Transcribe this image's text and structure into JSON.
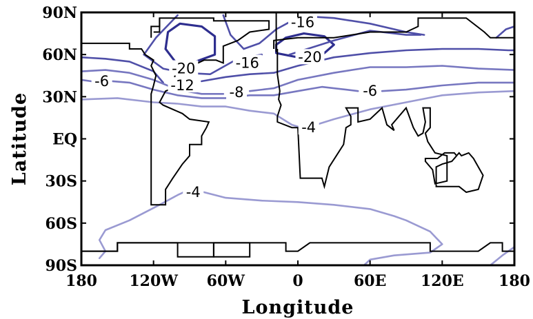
{
  "chart_data": {
    "type": "contour",
    "xlabel": "Longitude",
    "ylabel": "Latitude",
    "x_ticks": [
      "180",
      "120W",
      "60W",
      "0",
      "60E",
      "120E",
      "180"
    ],
    "x_tick_values": [
      -180,
      -120,
      -60,
      0,
      60,
      120,
      180
    ],
    "y_ticks": [
      "90N",
      "60N",
      "30N",
      "EQ",
      "30S",
      "60S",
      "90S"
    ],
    "y_tick_values": [
      90,
      60,
      30,
      0,
      -30,
      -60,
      -90
    ],
    "xlim": [
      -180,
      180
    ],
    "ylim": [
      -90,
      90
    ],
    "grid": false,
    "colors": {
      "contour_strong": "#2e2e8f",
      "contour_mid": "#4f4fa8",
      "contour_light": "#7777c0",
      "contour_faint": "#9a9ad2",
      "coastline": "#000000"
    },
    "contour_labels": [
      {
        "text": "-16",
        "lon": 4,
        "lat": 83
      },
      {
        "text": "-20",
        "lon": -95,
        "lat": 50
      },
      {
        "text": "-16",
        "lon": -42,
        "lat": 54
      },
      {
        "text": "-20",
        "lon": 10,
        "lat": 58
      },
      {
        "text": "-6",
        "lon": -163,
        "lat": 41
      },
      {
        "text": "-12",
        "lon": -96,
        "lat": 38
      },
      {
        "text": "-8",
        "lon": -51,
        "lat": 33
      },
      {
        "text": "-6",
        "lon": 60,
        "lat": 34
      },
      {
        "text": "-4",
        "lon": 9,
        "lat": 8
      },
      {
        "text": "-4",
        "lon": -87,
        "lat": -38
      }
    ],
    "contours": [
      {
        "level": -20,
        "color": "contour_strong",
        "points": [
          [
            -110,
            64
          ],
          [
            -108,
            76
          ],
          [
            -98,
            82
          ],
          [
            -80,
            80
          ],
          [
            -69,
            73
          ],
          [
            -69,
            60
          ],
          [
            -88,
            54
          ],
          [
            -102,
            55
          ],
          [
            -110,
            64
          ]
        ]
      },
      {
        "level": -20,
        "color": "contour_strong",
        "points": [
          [
            -18,
            67
          ],
          [
            -10,
            72
          ],
          [
            5,
            75
          ],
          [
            22,
            73
          ],
          [
            30,
            67
          ],
          [
            22,
            61
          ],
          [
            12,
            58
          ],
          [
            0,
            58
          ],
          [
            -18,
            61
          ],
          [
            -18,
            67
          ]
        ]
      },
      {
        "level": -16,
        "color": "contour_mid",
        "points": [
          [
            -128,
            60
          ],
          [
            -118,
            72
          ],
          [
            -100,
            88
          ]
        ]
      },
      {
        "level": -16,
        "color": "contour_mid",
        "points": [
          [
            -62,
            88
          ],
          [
            -56,
            74
          ],
          [
            -45,
            64
          ],
          [
            -32,
            68
          ],
          [
            -18,
            78
          ],
          [
            -5,
            84
          ],
          [
            10,
            87
          ],
          [
            30,
            86
          ],
          [
            60,
            82
          ],
          [
            90,
            76
          ],
          [
            105,
            74
          ]
        ]
      },
      {
        "level": -16,
        "color": "contour_mid",
        "points": [
          [
            -128,
            60
          ],
          [
            -112,
            50
          ],
          [
            -95,
            47
          ],
          [
            -73,
            46
          ],
          [
            -50,
            57
          ],
          [
            -30,
            60
          ]
        ]
      },
      {
        "level": -16,
        "color": "contour_mid",
        "points": [
          [
            -7,
            60
          ],
          [
            30,
            70
          ],
          [
            60,
            77
          ],
          [
            90,
            74
          ],
          [
            102,
            74
          ]
        ]
      },
      {
        "level": -16,
        "color": "contour_mid",
        "points": [
          [
            165,
            72
          ],
          [
            173,
            78
          ],
          [
            180,
            80
          ]
        ]
      },
      {
        "level": -12,
        "color": "contour_mid",
        "points": [
          [
            -180,
            58
          ],
          [
            -160,
            57
          ],
          [
            -140,
            55
          ],
          [
            -120,
            48
          ],
          [
            -112,
            40
          ]
        ]
      },
      {
        "level": -12,
        "color": "contour_mid",
        "points": [
          [
            -80,
            41
          ],
          [
            -60,
            44
          ],
          [
            -40,
            46
          ],
          [
            -20,
            47
          ],
          [
            0,
            52
          ],
          [
            30,
            58
          ],
          [
            60,
            61
          ],
          [
            90,
            63
          ],
          [
            120,
            64
          ],
          [
            150,
            64
          ],
          [
            175,
            63
          ],
          [
            180,
            63
          ]
        ]
      },
      {
        "level": -8,
        "color": "contour_light",
        "points": [
          [
            -180,
            48
          ],
          [
            -160,
            49
          ],
          [
            -140,
            47
          ],
          [
            -120,
            42
          ],
          [
            -100,
            35
          ],
          [
            -80,
            32
          ],
          [
            -62,
            32
          ]
        ]
      },
      {
        "level": -8,
        "color": "contour_light",
        "points": [
          [
            -40,
            34
          ],
          [
            -20,
            36
          ],
          [
            0,
            42
          ],
          [
            30,
            47
          ],
          [
            60,
            51
          ],
          [
            90,
            51
          ],
          [
            120,
            52
          ],
          [
            150,
            50
          ],
          [
            180,
            49
          ]
        ]
      },
      {
        "level": -6,
        "color": "contour_light",
        "points": [
          [
            -180,
            42
          ],
          [
            -172,
            41
          ]
        ]
      },
      {
        "level": -6,
        "color": "contour_light",
        "points": [
          [
            -154,
            41
          ],
          [
            -140,
            40
          ],
          [
            -120,
            35
          ],
          [
            -100,
            31
          ],
          [
            -80,
            29
          ],
          [
            -60,
            29
          ],
          [
            -40,
            31
          ],
          [
            -20,
            31
          ],
          [
            0,
            34
          ],
          [
            20,
            37
          ],
          [
            40,
            35
          ],
          [
            50,
            34
          ]
        ]
      },
      {
        "level": -6,
        "color": "contour_light",
        "points": [
          [
            70,
            34
          ],
          [
            90,
            35
          ],
          [
            120,
            38
          ],
          [
            150,
            40
          ],
          [
            180,
            40
          ]
        ]
      },
      {
        "level": -4,
        "color": "contour_faint",
        "points": [
          [
            -180,
            28
          ],
          [
            -150,
            29
          ],
          [
            -120,
            26
          ],
          [
            -100,
            25
          ],
          [
            -80,
            23
          ],
          [
            -60,
            23
          ],
          [
            -40,
            20
          ],
          [
            -20,
            18
          ],
          [
            -5,
            10
          ],
          [
            3,
            8
          ]
        ]
      },
      {
        "level": -4,
        "color": "contour_faint",
        "points": [
          [
            15,
            10
          ],
          [
            30,
            14
          ],
          [
            60,
            21
          ],
          [
            90,
            26
          ],
          [
            120,
            31
          ],
          [
            150,
            33
          ],
          [
            180,
            34
          ]
        ]
      },
      {
        "level": -4,
        "color": "contour_faint",
        "points": [
          [
            -165,
            -85
          ],
          [
            -160,
            -80
          ],
          [
            -165,
            -72
          ],
          [
            -160,
            -65
          ],
          [
            -140,
            -58
          ],
          [
            -115,
            -47
          ],
          [
            -100,
            -40
          ],
          [
            -95,
            -38
          ]
        ]
      },
      {
        "level": -4,
        "color": "contour_faint",
        "points": [
          [
            -78,
            -38
          ],
          [
            -60,
            -42
          ],
          [
            -30,
            -44
          ],
          [
            0,
            -45
          ],
          [
            30,
            -47
          ],
          [
            60,
            -50
          ],
          [
            80,
            -55
          ],
          [
            90,
            -58
          ],
          [
            100,
            -62
          ],
          [
            110,
            -66
          ],
          [
            120,
            -75
          ],
          [
            110,
            -81
          ],
          [
            80,
            -83
          ],
          [
            60,
            -86
          ],
          [
            55,
            -90
          ]
        ]
      },
      {
        "level": -4,
        "color": "contour_faint",
        "points": [
          [
            180,
            -77
          ],
          [
            170,
            -83
          ],
          [
            160,
            -90
          ]
        ]
      }
    ],
    "coastlines": [
      [
        [
          -180,
          68
        ],
        [
          -140,
          68
        ],
        [
          -140,
          64
        ],
        [
          -130,
          64
        ],
        [
          -127,
          60
        ],
        [
          -120,
          56
        ],
        [
          -122,
          52
        ],
        [
          -118,
          45
        ],
        [
          -120,
          38
        ],
        [
          -122,
          32
        ],
        [
          -122,
          -20
        ],
        [
          -122,
          -47
        ],
        [
          -110,
          -47
        ],
        [
          -110,
          -36
        ],
        [
          -104,
          -28
        ],
        [
          -96,
          -18
        ],
        [
          -90,
          -12
        ],
        [
          -90,
          -4
        ],
        [
          -80,
          -4
        ],
        [
          -80,
          2
        ],
        [
          -76,
          8
        ],
        [
          -74,
          12
        ],
        [
          -90,
          14
        ],
        [
          -96,
          18
        ],
        [
          -112,
          24
        ],
        [
          -115,
          26
        ],
        [
          -110,
          34
        ],
        [
          -104,
          36
        ],
        [
          -102,
          46
        ],
        [
          -88,
          52
        ],
        [
          -78,
          56
        ],
        [
          -68,
          56
        ],
        [
          -62,
          54
        ],
        [
          -62,
          66
        ],
        [
          -50,
          70
        ],
        [
          -40,
          76
        ],
        [
          -24,
          78
        ],
        [
          -24,
          84
        ],
        [
          -70,
          84
        ],
        [
          -70,
          86
        ],
        [
          -115,
          86
        ],
        [
          -115,
          80
        ],
        [
          -122,
          80
        ],
        [
          -122,
          72
        ]
      ],
      [
        [
          -120,
          76
        ],
        [
          -115,
          76
        ],
        [
          -115,
          86
        ]
      ],
      [
        [
          -18,
          62
        ],
        [
          -18,
          90
        ]
      ],
      [
        [
          -17,
          64
        ],
        [
          -17,
          46
        ],
        [
          -15,
          34
        ],
        [
          -16,
          28
        ],
        [
          -14,
          24
        ],
        [
          -17,
          16
        ],
        [
          -17,
          12
        ],
        [
          -5,
          8
        ],
        [
          0,
          8
        ],
        [
          2,
          -28
        ],
        [
          20,
          -28
        ],
        [
          22,
          -34
        ],
        [
          26,
          -20
        ],
        [
          38,
          -4
        ],
        [
          40,
          8
        ],
        [
          44,
          10
        ],
        [
          44,
          16
        ],
        [
          40,
          22
        ],
        [
          50,
          22
        ],
        [
          50,
          12
        ],
        [
          60,
          14
        ],
        [
          70,
          22
        ],
        [
          74,
          10
        ],
        [
          80,
          6
        ],
        [
          78,
          10
        ],
        [
          90,
          22
        ],
        [
          96,
          8
        ],
        [
          100,
          2
        ],
        [
          104,
          4
        ],
        [
          106,
          12
        ],
        [
          104,
          22
        ],
        [
          110,
          22
        ],
        [
          110,
          16
        ],
        [
          110,
          8
        ],
        [
          106,
          4
        ],
        [
          108,
          -2
        ],
        [
          114,
          -10
        ],
        [
          124,
          -12
        ],
        [
          124,
          -30
        ],
        [
          114,
          -32
        ],
        [
          112,
          -22
        ],
        [
          106,
          -16
        ],
        [
          106,
          -14
        ],
        [
          116,
          -14
        ],
        [
          122,
          -10
        ],
        [
          130,
          -10
        ],
        [
          132,
          -12
        ],
        [
          128,
          -16
        ],
        [
          120,
          -18
        ],
        [
          115,
          -20
        ],
        [
          115,
          -34
        ],
        [
          134,
          -34
        ],
        [
          140,
          -38
        ],
        [
          150,
          -36
        ],
        [
          154,
          -26
        ],
        [
          146,
          -14
        ],
        [
          142,
          -10
        ],
        [
          136,
          -12
        ],
        [
          134,
          -10
        ],
        [
          128,
          -16
        ]
      ],
      [
        [
          -20,
          64
        ],
        [
          -20,
          70
        ],
        [
          0,
          72
        ],
        [
          30,
          72
        ],
        [
          60,
          76
        ],
        [
          90,
          76
        ],
        [
          100,
          80
        ],
        [
          100,
          86
        ],
        [
          140,
          86
        ],
        [
          155,
          76
        ],
        [
          160,
          72
        ],
        [
          170,
          72
        ],
        [
          180,
          72
        ]
      ],
      [
        [
          -180,
          -80
        ],
        [
          -150,
          -80
        ],
        [
          -150,
          -74
        ],
        [
          -40,
          -74
        ],
        [
          -40,
          -80
        ],
        [
          -40,
          -84
        ],
        [
          -70,
          -84
        ],
        [
          -70,
          -74
        ],
        [
          -40,
          -74
        ]
      ],
      [
        [
          -180,
          -80
        ],
        [
          -150,
          -80
        ],
        [
          -150,
          -74
        ],
        [
          -100,
          -74
        ],
        [
          -100,
          -84
        ],
        [
          -70,
          -84
        ],
        [
          -70,
          -74
        ],
        [
          -10,
          -74
        ],
        [
          -10,
          -80
        ],
        [
          0,
          -80
        ],
        [
          10,
          -74
        ],
        [
          40,
          -74
        ],
        [
          60,
          -74
        ],
        [
          90,
          -74
        ],
        [
          110,
          -74
        ],
        [
          110,
          -80
        ],
        [
          150,
          -80
        ],
        [
          160,
          -74
        ],
        [
          170,
          -74
        ],
        [
          170,
          -80
        ],
        [
          180,
          -80
        ]
      ]
    ]
  }
}
